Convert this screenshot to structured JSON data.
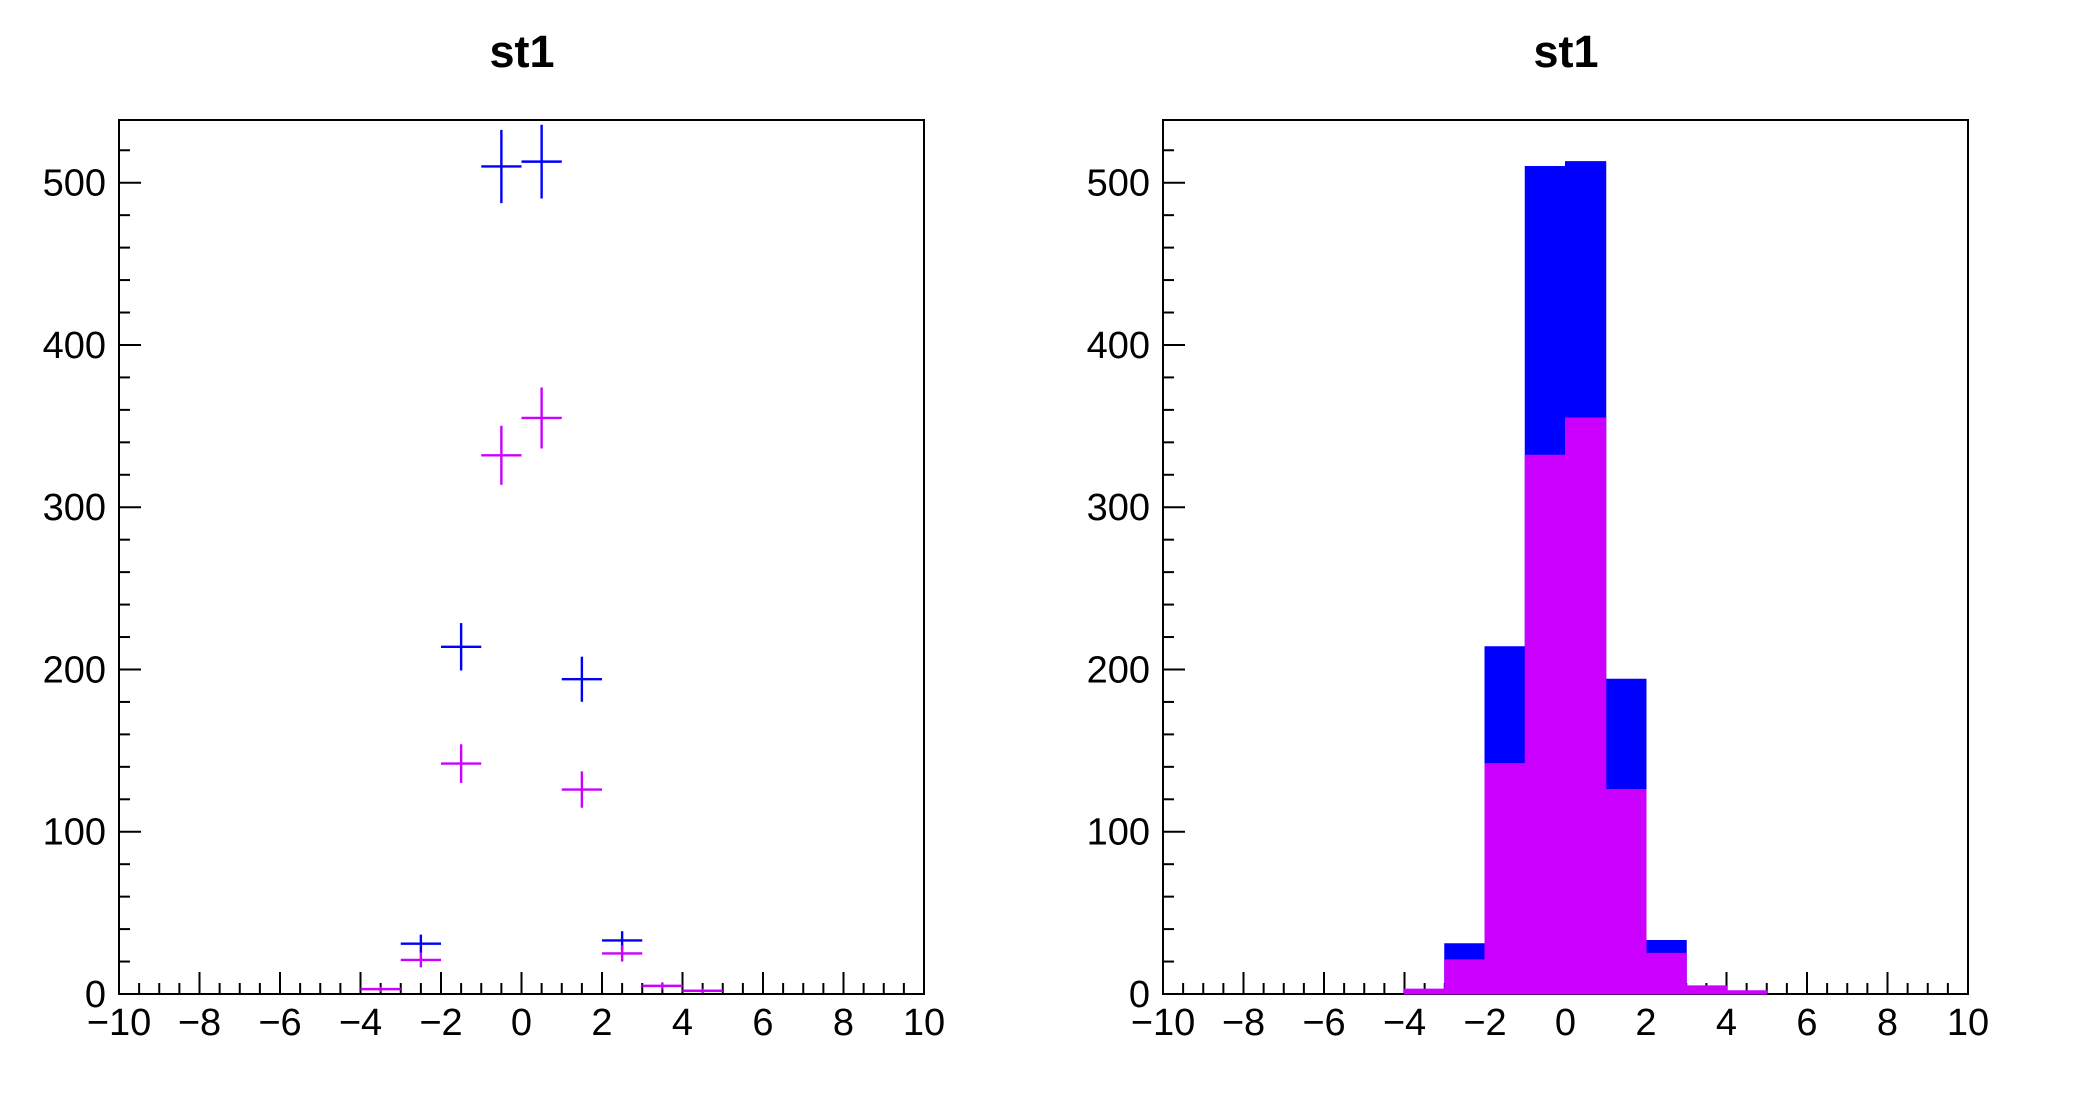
{
  "page": {
    "background": "#ffffff",
    "axis_color": "#000000"
  },
  "colors": {
    "blue_series": "#0000ff",
    "magenta_series": "#cc00ff"
  },
  "chart_data": [
    {
      "type": "scatter",
      "subtype": "histogram-error-bars",
      "title": "st1",
      "xlabel": "",
      "ylabel": "",
      "xlim": [
        -10,
        10
      ],
      "ylim": [
        0,
        538.65
      ],
      "grid": false,
      "legend": "none",
      "x_ticks": [
        -10,
        -8,
        -6,
        -4,
        -2,
        0,
        2,
        4,
        6,
        8,
        10
      ],
      "x_tick_labels": [
        "−10",
        "−8",
        "−6",
        "−4",
        "−2",
        "0",
        "2",
        "4",
        "6",
        "8",
        "10"
      ],
      "x_minor_step": 0.5,
      "y_ticks": [
        0,
        100,
        200,
        300,
        400,
        500
      ],
      "y_tick_labels": [
        "0",
        "100",
        "200",
        "300",
        "400",
        "500"
      ],
      "y_minor_step": 20,
      "bin_width": 1,
      "series": [
        {
          "name": "blue-errorbar-series",
          "color": "#0000ff",
          "bin_centers": [
            -2.5,
            -1.5,
            -0.5,
            0.5,
            1.5,
            2.5
          ],
          "values": [
            31,
            214,
            510,
            513,
            194,
            33
          ],
          "errors": [
            5.6,
            14.6,
            22.6,
            22.7,
            13.9,
            5.7
          ]
        },
        {
          "name": "magenta-errorbar-series",
          "color": "#cc00ff",
          "bin_centers": [
            -3.5,
            -2.5,
            -1.5,
            -0.5,
            0.5,
            1.5,
            2.5,
            3.5,
            4.5
          ],
          "values": [
            3,
            21,
            142,
            332,
            355,
            126,
            25,
            5,
            2
          ],
          "errors": [
            1.7,
            4.6,
            11.9,
            18.2,
            18.8,
            11.2,
            5.0,
            2.2,
            1.4
          ]
        }
      ]
    },
    {
      "type": "bar",
      "subtype": "overlaid-filled-histograms",
      "title": "st1",
      "xlabel": "",
      "ylabel": "",
      "xlim": [
        -10,
        10
      ],
      "ylim": [
        0,
        538.65
      ],
      "grid": false,
      "legend": "none",
      "x_ticks": [
        -10,
        -8,
        -6,
        -4,
        -2,
        0,
        2,
        4,
        6,
        8,
        10
      ],
      "x_tick_labels": [
        "−10",
        "−8",
        "−6",
        "−4",
        "−2",
        "0",
        "2",
        "4",
        "6",
        "8",
        "10"
      ],
      "x_minor_step": 0.5,
      "y_ticks": [
        0,
        100,
        200,
        300,
        400,
        500
      ],
      "y_tick_labels": [
        "0",
        "100",
        "200",
        "300",
        "400",
        "500"
      ],
      "y_minor_step": 20,
      "bin_width": 1,
      "series": [
        {
          "name": "blue-bar-series",
          "color": "#0000ff",
          "bin_centers": [
            -2.5,
            -1.5,
            -0.5,
            0.5,
            1.5,
            2.5
          ],
          "values": [
            31,
            214,
            510,
            513,
            194,
            33
          ]
        },
        {
          "name": "magenta-bar-series",
          "color": "#cc00ff",
          "bin_centers": [
            -3.5,
            -2.5,
            -1.5,
            -0.5,
            0.5,
            1.5,
            2.5,
            3.5,
            4.5
          ],
          "values": [
            3,
            21,
            142,
            332,
            355,
            126,
            25,
            5,
            2
          ]
        }
      ]
    }
  ]
}
